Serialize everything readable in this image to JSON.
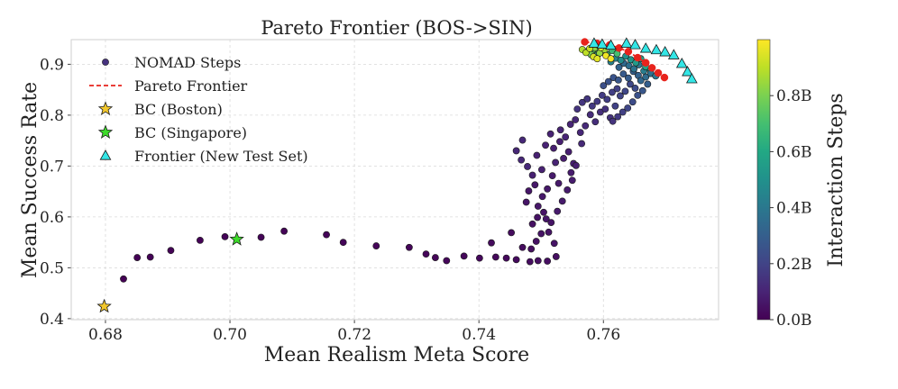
{
  "chart_data": {
    "type": "scatter",
    "title": "Pareto Frontier (BOS->SIN)",
    "xlabel": "Mean Realism Meta Score",
    "ylabel": "Mean Success Rate",
    "xlim": [
      0.6745,
      0.7785
    ],
    "ylim": [
      0.398,
      0.9485
    ],
    "xticks": [
      0.68,
      0.7,
      0.72,
      0.74,
      0.76
    ],
    "xtick_labels": [
      "0.68",
      "0.70",
      "0.72",
      "0.74",
      "0.76"
    ],
    "yticks": [
      0.4,
      0.5,
      0.6,
      0.7,
      0.8,
      0.9
    ],
    "ytick_labels": [
      "0.4",
      "0.5",
      "0.6",
      "0.7",
      "0.8",
      "0.9"
    ],
    "grid": true,
    "legend_position": "upper-left",
    "legend_entries": [
      "NOMAD Steps",
      "Pareto Frontier",
      "BC (Boston)",
      "BC (Singapore)",
      "Frontier (New Test Set)"
    ],
    "colorbar": {
      "label": "Interaction Steps",
      "range": [
        0.0,
        1.0
      ],
      "ticks": [
        0.0,
        0.2,
        0.4,
        0.6,
        0.8
      ],
      "tick_labels": [
        "0.0B",
        "0.2B",
        "0.4B",
        "0.6B",
        "0.8B"
      ],
      "colormap": "viridis"
    },
    "series": [
      {
        "name": "NOMAD Steps",
        "kind": "scatter",
        "points": [
          [
            0.6829,
            0.478,
            0.002
          ],
          [
            0.6851,
            0.52,
            0.004
          ],
          [
            0.6872,
            0.521,
            0.005
          ],
          [
            0.6905,
            0.534,
            0.006
          ],
          [
            0.6952,
            0.554,
            0.007
          ],
          [
            0.6992,
            0.561,
            0.008
          ],
          [
            0.705,
            0.56,
            0.009
          ],
          [
            0.7087,
            0.572,
            0.01
          ],
          [
            0.7155,
            0.565,
            0.011
          ],
          [
            0.7182,
            0.55,
            0.012
          ],
          [
            0.7235,
            0.543,
            0.013
          ],
          [
            0.7288,
            0.54,
            0.014
          ],
          [
            0.7315,
            0.527,
            0.015
          ],
          [
            0.733,
            0.52,
            0.016
          ],
          [
            0.7348,
            0.514,
            0.017
          ],
          [
            0.7376,
            0.523,
            0.018
          ],
          [
            0.7401,
            0.519,
            0.02
          ],
          [
            0.7427,
            0.521,
            0.022
          ],
          [
            0.7444,
            0.519,
            0.024
          ],
          [
            0.746,
            0.516,
            0.026
          ],
          [
            0.7452,
            0.569,
            0.03
          ],
          [
            0.742,
            0.549,
            0.028
          ],
          [
            0.747,
            0.54,
            0.032
          ],
          [
            0.7482,
            0.512,
            0.034
          ],
          [
            0.7495,
            0.514,
            0.036
          ],
          [
            0.751,
            0.513,
            0.038
          ],
          [
            0.7524,
            0.522,
            0.04
          ],
          [
            0.7486,
            0.586,
            0.045
          ],
          [
            0.7494,
            0.599,
            0.048
          ],
          [
            0.7504,
            0.609,
            0.05
          ],
          [
            0.7512,
            0.57,
            0.052
          ],
          [
            0.7521,
            0.548,
            0.055
          ],
          [
            0.7476,
            0.629,
            0.058
          ],
          [
            0.748,
            0.651,
            0.06
          ],
          [
            0.749,
            0.663,
            0.062
          ],
          [
            0.7495,
            0.621,
            0.064
          ],
          [
            0.7502,
            0.64,
            0.066
          ],
          [
            0.751,
            0.655,
            0.068
          ],
          [
            0.7518,
            0.681,
            0.07
          ],
          [
            0.7526,
            0.611,
            0.072
          ],
          [
            0.7534,
            0.631,
            0.074
          ],
          [
            0.7542,
            0.653,
            0.076
          ],
          [
            0.755,
            0.672,
            0.078
          ],
          [
            0.7536,
            0.715,
            0.08
          ],
          [
            0.7544,
            0.728,
            0.082
          ],
          [
            0.7552,
            0.705,
            0.084
          ],
          [
            0.752,
            0.735,
            0.086
          ],
          [
            0.753,
            0.748,
            0.088
          ],
          [
            0.7486,
            0.682,
            0.09
          ],
          [
            0.7493,
            0.721,
            0.092
          ],
          [
            0.7501,
            0.693,
            0.094
          ],
          [
            0.7507,
            0.741,
            0.096
          ],
          [
            0.7515,
            0.763,
            0.098
          ],
          [
            0.7523,
            0.707,
            0.1
          ],
          [
            0.7531,
            0.771,
            0.102
          ],
          [
            0.7539,
            0.757,
            0.104
          ],
          [
            0.7547,
            0.782,
            0.106
          ],
          [
            0.7555,
            0.791,
            0.108
          ],
          [
            0.7563,
            0.766,
            0.11
          ],
          [
            0.746,
            0.73,
            0.11
          ],
          [
            0.7468,
            0.712,
            0.112
          ],
          [
            0.747,
            0.751,
            0.114
          ],
          [
            0.7478,
            0.699,
            0.116
          ],
          [
            0.7565,
            0.744,
            0.118
          ],
          [
            0.7571,
            0.779,
            0.12
          ],
          [
            0.7579,
            0.801,
            0.125
          ],
          [
            0.7587,
            0.787,
            0.13
          ],
          [
            0.7595,
            0.806,
            0.135
          ],
          [
            0.7603,
            0.812,
            0.14
          ],
          [
            0.7611,
            0.795,
            0.145
          ],
          [
            0.7558,
            0.812,
            0.15
          ],
          [
            0.7566,
            0.825,
            0.155
          ],
          [
            0.7574,
            0.832,
            0.16
          ],
          [
            0.7582,
            0.818,
            0.165
          ],
          [
            0.759,
            0.827,
            0.17
          ],
          [
            0.7598,
            0.839,
            0.175
          ],
          [
            0.7606,
            0.831,
            0.18
          ],
          [
            0.7614,
            0.845,
            0.185
          ],
          [
            0.7622,
            0.852,
            0.19
          ],
          [
            0.7619,
            0.818,
            0.195
          ],
          [
            0.7627,
            0.838,
            0.2
          ],
          [
            0.7635,
            0.847,
            0.21
          ],
          [
            0.7643,
            0.861,
            0.22
          ],
          [
            0.7651,
            0.853,
            0.23
          ],
          [
            0.76,
            0.858,
            0.24
          ],
          [
            0.7608,
            0.866,
            0.25
          ],
          [
            0.7616,
            0.874,
            0.26
          ],
          [
            0.7624,
            0.869,
            0.27
          ],
          [
            0.7632,
            0.881,
            0.28
          ],
          [
            0.764,
            0.873,
            0.29
          ],
          [
            0.7648,
            0.886,
            0.3
          ],
          [
            0.7656,
            0.878,
            0.31
          ],
          [
            0.7625,
            0.894,
            0.32
          ],
          [
            0.7633,
            0.902,
            0.34
          ],
          [
            0.7641,
            0.897,
            0.36
          ],
          [
            0.7649,
            0.891,
            0.38
          ],
          [
            0.7657,
            0.899,
            0.4
          ],
          [
            0.7665,
            0.887,
            0.42
          ],
          [
            0.7612,
            0.905,
            0.44
          ],
          [
            0.762,
            0.912,
            0.46
          ],
          [
            0.7628,
            0.908,
            0.48
          ],
          [
            0.7636,
            0.916,
            0.5
          ],
          [
            0.7644,
            0.909,
            0.52
          ],
          [
            0.7652,
            0.903,
            0.54
          ],
          [
            0.766,
            0.911,
            0.56
          ],
          [
            0.7668,
            0.895,
            0.58
          ],
          [
            0.7676,
            0.889,
            0.6
          ],
          [
            0.759,
            0.918,
            0.62
          ],
          [
            0.7598,
            0.924,
            0.64
          ],
          [
            0.7606,
            0.919,
            0.66
          ],
          [
            0.7614,
            0.927,
            0.68
          ],
          [
            0.7622,
            0.921,
            0.7
          ],
          [
            0.7582,
            0.927,
            0.72
          ],
          [
            0.759,
            0.93,
            0.74
          ],
          [
            0.7598,
            0.926,
            0.76
          ],
          [
            0.7574,
            0.925,
            0.78
          ],
          [
            0.758,
            0.919,
            0.8
          ],
          [
            0.7586,
            0.932,
            0.82
          ],
          [
            0.7594,
            0.922,
            0.84
          ],
          [
            0.7602,
            0.929,
            0.86
          ],
          [
            0.7566,
            0.929,
            0.88
          ],
          [
            0.7572,
            0.923,
            0.9
          ],
          [
            0.7578,
            0.931,
            0.92
          ],
          [
            0.7584,
            0.915,
            0.94
          ],
          [
            0.759,
            0.911,
            0.96
          ],
          [
            0.7596,
            0.933,
            0.97
          ],
          [
            0.7604,
            0.917,
            0.98
          ],
          [
            0.7612,
            0.911,
            0.99
          ],
          [
            0.766,
            0.868,
            0.33
          ],
          [
            0.7668,
            0.875,
            0.35
          ],
          [
            0.7676,
            0.882,
            0.37
          ],
          [
            0.7684,
            0.877,
            0.39
          ],
          [
            0.7671,
            0.861,
            0.3
          ],
          [
            0.7663,
            0.848,
            0.27
          ],
          [
            0.7655,
            0.839,
            0.25
          ],
          [
            0.7647,
            0.826,
            0.23
          ],
          [
            0.7639,
            0.814,
            0.21
          ],
          [
            0.7631,
            0.806,
            0.19
          ],
          [
            0.7623,
            0.797,
            0.17
          ],
          [
            0.7615,
            0.788,
            0.15
          ],
          [
            0.7548,
            0.687,
            0.075
          ],
          [
            0.7556,
            0.701,
            0.085
          ],
          [
            0.7528,
            0.666,
            0.07
          ],
          [
            0.7508,
            0.596,
            0.06
          ],
          [
            0.7516,
            0.589,
            0.055
          ],
          [
            0.75,
            0.567,
            0.05
          ],
          [
            0.7492,
            0.552,
            0.045
          ],
          [
            0.7484,
            0.537,
            0.04
          ]
        ]
      },
      {
        "name": "Pareto Frontier",
        "kind": "line",
        "color": "#e8231c",
        "points": [
          [
            0.757,
            0.944
          ],
          [
            0.759,
            0.941
          ],
          [
            0.761,
            0.938
          ],
          [
            0.7625,
            0.932
          ],
          [
            0.764,
            0.925
          ],
          [
            0.7655,
            0.913
          ],
          [
            0.7668,
            0.903
          ],
          [
            0.7678,
            0.893
          ],
          [
            0.7688,
            0.883
          ],
          [
            0.7698,
            0.874
          ]
        ]
      },
      {
        "name": "BC (Boston)",
        "kind": "star",
        "color": "#f2c72c",
        "points": [
          [
            0.6798,
            0.424
          ]
        ]
      },
      {
        "name": "BC (Singapore)",
        "kind": "star",
        "color": "#3ddc2a",
        "points": [
          [
            0.7011,
            0.556
          ]
        ]
      },
      {
        "name": "Frontier (New Test Set)",
        "kind": "triangle",
        "color": "#33e6e6",
        "points": [
          [
            0.7585,
            0.941
          ],
          [
            0.7598,
            0.939
          ],
          [
            0.7612,
            0.937
          ],
          [
            0.7637,
            0.941
          ],
          [
            0.7651,
            0.938
          ],
          [
            0.7668,
            0.931
          ],
          [
            0.7685,
            0.928
          ],
          [
            0.7699,
            0.924
          ],
          [
            0.7713,
            0.918
          ],
          [
            0.7726,
            0.901
          ],
          [
            0.7735,
            0.885
          ],
          [
            0.7742,
            0.871
          ]
        ]
      }
    ]
  }
}
